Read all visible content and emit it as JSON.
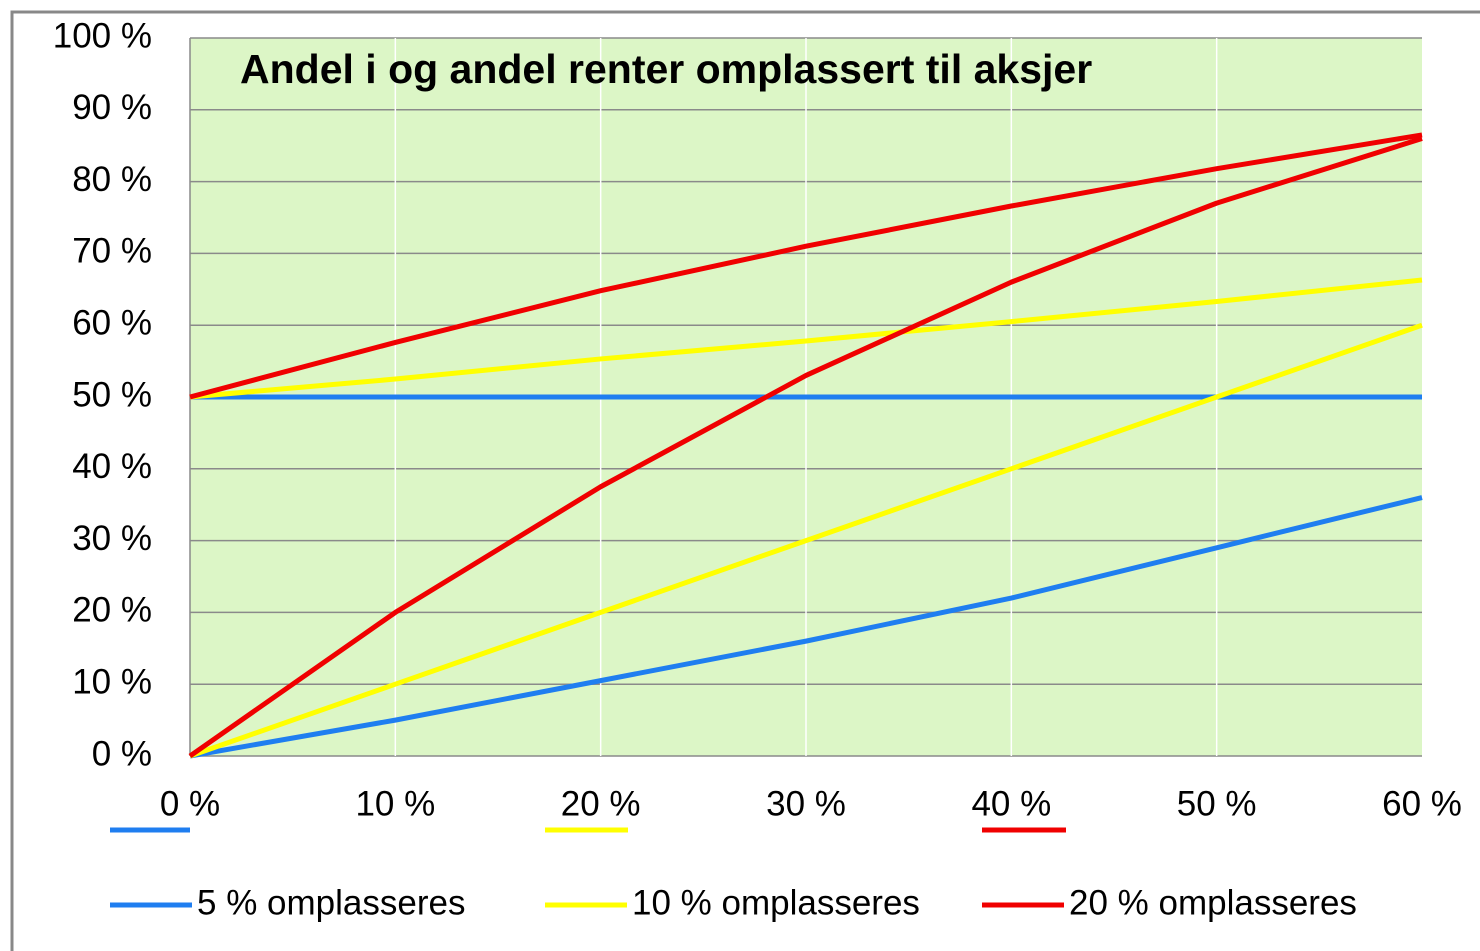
{
  "chart_data": {
    "type": "line",
    "title": "Andel i og andel renter omplassert til aksjer",
    "x": [
      0,
      10,
      20,
      30,
      40,
      50,
      60
    ],
    "series": [
      {
        "name": "5 % omplasseres",
        "color": "#1f7ef0",
        "values": [
          0,
          5,
          10.5,
          16,
          22,
          29,
          36
        ]
      },
      {
        "color": "#1f7ef0",
        "values": [
          50,
          50,
          50,
          50,
          50,
          50,
          50
        ]
      },
      {
        "name": "10 % omplasseres",
        "color": "#ffff00",
        "values": [
          0,
          10,
          20,
          30,
          40,
          50,
          60
        ]
      },
      {
        "color": "#ffff00",
        "values": [
          50,
          52.5,
          55.3,
          57.8,
          60.5,
          63.3,
          66.3
        ]
      },
      {
        "name": "20 % omplasseres",
        "color": "#f00000",
        "values": [
          0,
          20,
          37.5,
          53,
          66,
          77,
          86
        ]
      },
      {
        "color": "#f00000",
        "values": [
          50,
          57.6,
          64.8,
          71,
          76.6,
          81.8,
          86.5
        ]
      }
    ],
    "xlim": [
      0,
      60
    ],
    "xticks": [
      {
        "value": 0,
        "label": "0 %"
      },
      {
        "value": 10,
        "label": "10 %"
      },
      {
        "value": 20,
        "label": "20 %"
      },
      {
        "value": 30,
        "label": "30 %"
      },
      {
        "value": 40,
        "label": "40 %"
      },
      {
        "value": 50,
        "label": "50 %"
      },
      {
        "value": 60,
        "label": "60 %"
      }
    ],
    "ylim": [
      0,
      100
    ],
    "yticks": [
      {
        "value": 0,
        "label": "0 %"
      },
      {
        "value": 10,
        "label": "10 %"
      },
      {
        "value": 20,
        "label": "20 %"
      },
      {
        "value": 30,
        "label": "30 %"
      },
      {
        "value": 40,
        "label": "40 %"
      },
      {
        "value": 50,
        "label": "50 %"
      },
      {
        "value": 60,
        "label": "60 %"
      },
      {
        "value": 70,
        "label": "70 %"
      },
      {
        "value": 80,
        "label": "80 %"
      },
      {
        "value": 90,
        "label": "90 %"
      },
      {
        "value": 100,
        "label": "100 %"
      }
    ],
    "grid": true
  }
}
